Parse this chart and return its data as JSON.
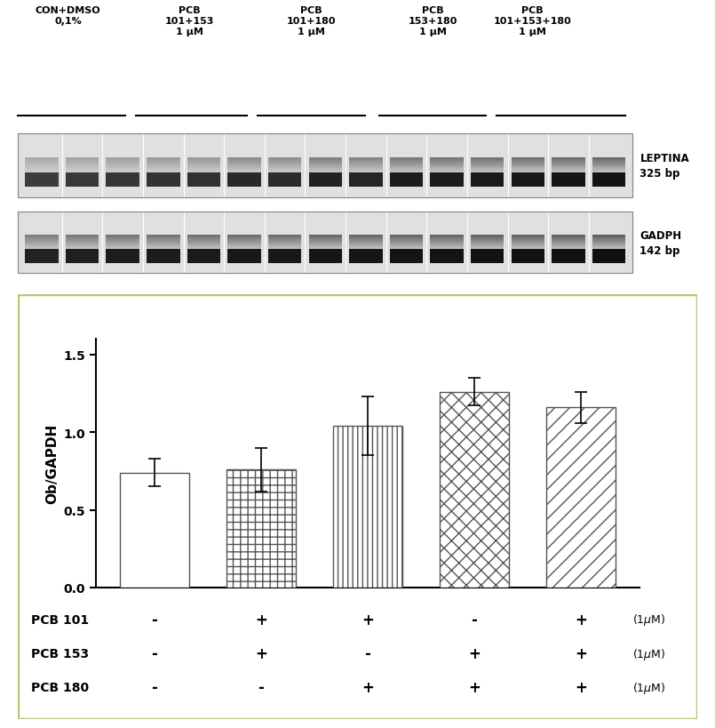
{
  "bar_values": [
    0.74,
    0.76,
    1.04,
    1.26,
    1.16
  ],
  "bar_errors": [
    0.09,
    0.14,
    0.19,
    0.09,
    0.1
  ],
  "ylabel": "Ob/GAPDH",
  "ylim": [
    0,
    1.6
  ],
  "yticks": [
    0.0,
    0.5,
    1.0,
    1.5
  ],
  "ytick_labels": [
    "0.0",
    "0.5",
    "1.0",
    "1.5"
  ],
  "bar_width": 0.65,
  "bar_positions": [
    1,
    2,
    3,
    4,
    5
  ],
  "pcb101_signs": [
    "-",
    "+",
    "+",
    "-",
    "+"
  ],
  "pcb153_signs": [
    "-",
    "+",
    "-",
    "+",
    "+"
  ],
  "pcb180_signs": [
    "-",
    "-",
    "+",
    "+",
    "+"
  ],
  "group_labels": [
    "CON+DMSO\n0,1%",
    "PCB\n101+153\n1 μM",
    "PCB\n101+180\n1 μM",
    "PCB\n153+180\n1 μM",
    "PCB\n101+153+180\n1 μM"
  ],
  "leptina_label": "LEPTINA\n325 bp",
  "gapdh_label": "GADPH\n142 bp",
  "box_color": "#b5c97a",
  "figure_bg": "white",
  "n_lanes": 15,
  "leptina_intensities": [
    0.38,
    0.42,
    0.45,
    0.5,
    0.52,
    0.62,
    0.6,
    0.72,
    0.68,
    0.78,
    0.8,
    0.82,
    0.85,
    0.87,
    0.9
  ],
  "gapdh_intensities": [
    0.72,
    0.75,
    0.78,
    0.8,
    0.82,
    0.85,
    0.85,
    0.88,
    0.88,
    0.9,
    0.9,
    0.92,
    0.92,
    0.94,
    0.95
  ]
}
